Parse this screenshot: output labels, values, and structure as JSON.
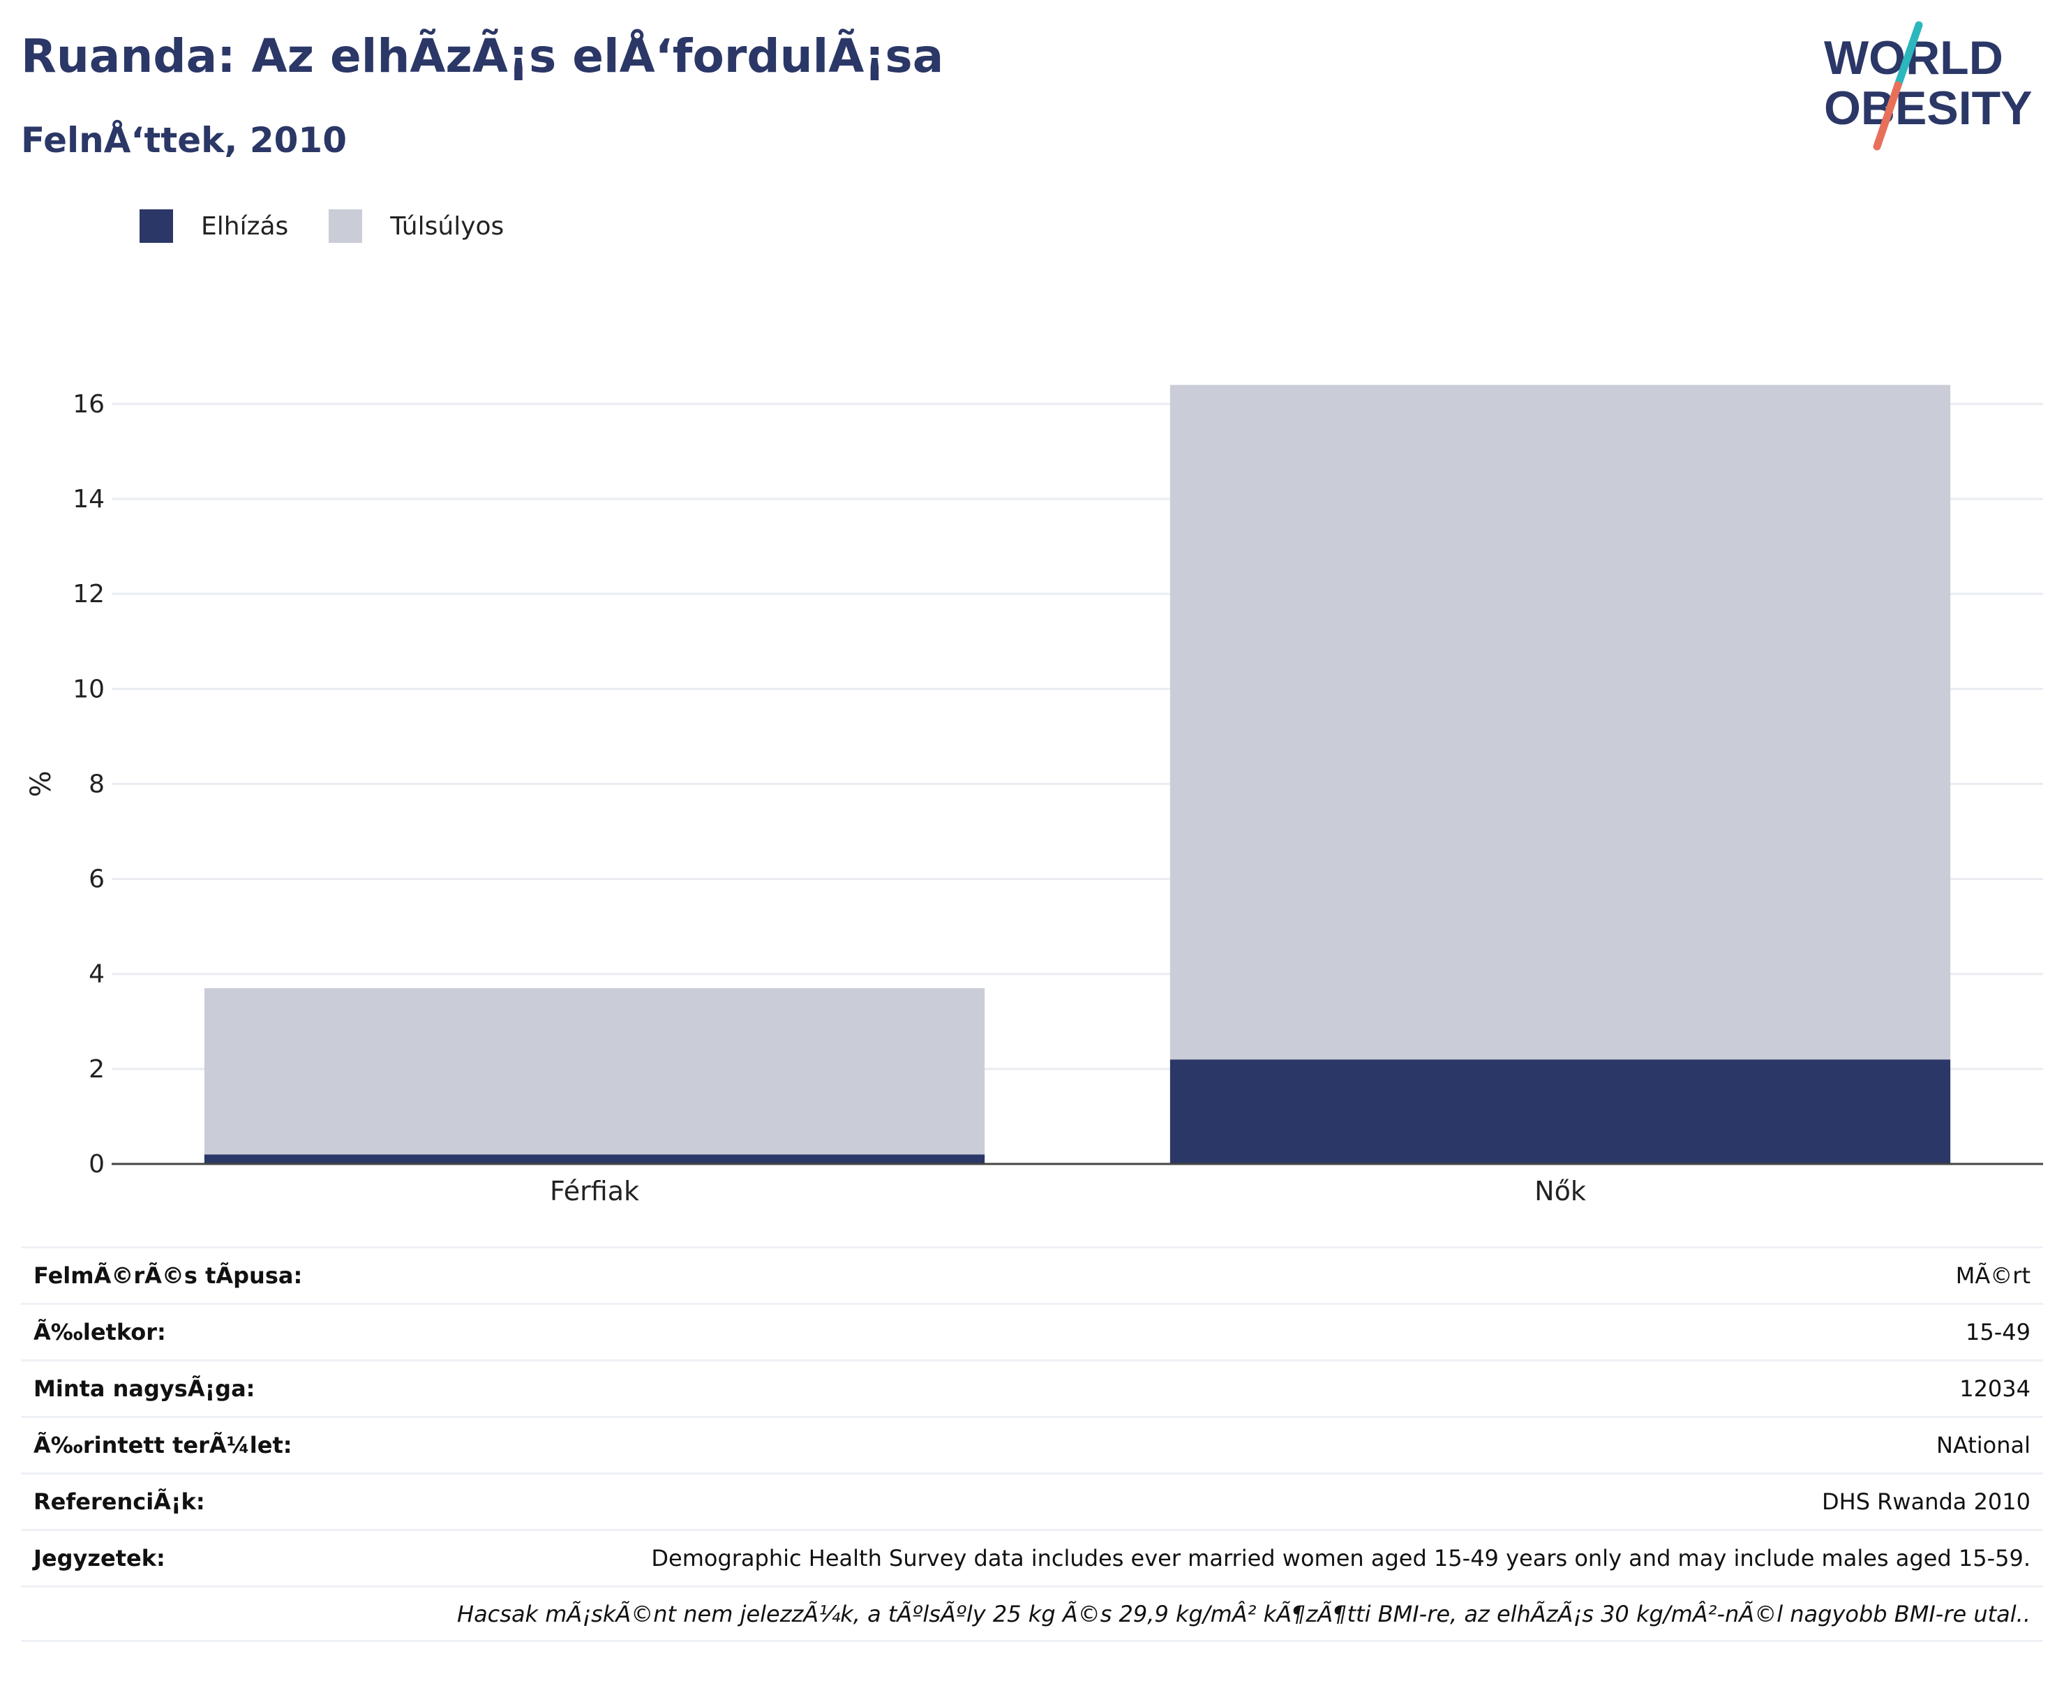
{
  "header": {
    "title": "Ruanda: Az elhÃzÃ¡s elÅ‘fordulÃ¡sa",
    "subtitle": "FelnÅ‘ttek, 2010",
    "logo_text_1": "WORLD",
    "logo_text_2": "OBESITY"
  },
  "colors": {
    "obesity": "#2b3766",
    "overweight": "#cacdd8",
    "title": "#2b3766",
    "logo_teal": "#2bb7bd",
    "logo_red": "#e8705a"
  },
  "legend": [
    {
      "label": "Elhízás",
      "color": "#2b3766"
    },
    {
      "label": "Túlsúlyos",
      "color": "#cacdd8"
    }
  ],
  "chart_data": {
    "type": "bar",
    "stacked": true,
    "categories": [
      "Férfiak",
      "Nők"
    ],
    "series": [
      {
        "name": "Elhízás",
        "values": [
          0.2,
          2.2
        ]
      },
      {
        "name": "Túlsúlyos",
        "values": [
          3.5,
          14.2
        ]
      }
    ],
    "ylabel": "%",
    "ylim": [
      0,
      16.6
    ],
    "yticks": [
      0,
      2,
      4,
      6,
      8,
      10,
      12,
      14,
      16
    ],
    "grid": true,
    "legend_position": "top-left"
  },
  "info": {
    "rows": [
      {
        "label": "FelmÃ©rÃ©s tÃpusa:",
        "value": "MÃ©rt"
      },
      {
        "label": "Ã‰letkor:",
        "value": "15-49"
      },
      {
        "label": "Minta nagysÃ¡ga:",
        "value": "12034"
      },
      {
        "label": "Ã‰rintett terÃ¼let:",
        "value": "NAtional"
      },
      {
        "label": "ReferenciÃ¡k:",
        "value": "DHS Rwanda 2010"
      },
      {
        "label": "Jegyzetek:",
        "value": "Demographic Health Survey data includes ever married women aged 15-49 years only and may include males aged 15-59."
      }
    ],
    "footnote": "Hacsak mÃ¡skÃ©nt nem jelezzÃ¼k, a tÃºlsÃºly 25 kg Ã©s 29,9 kg/mÂ² kÃ¶zÃ¶tti BMI-re, az elhÃzÃ¡s 30 kg/mÂ²-nÃ©l nagyobb BMI-re utal.."
  }
}
